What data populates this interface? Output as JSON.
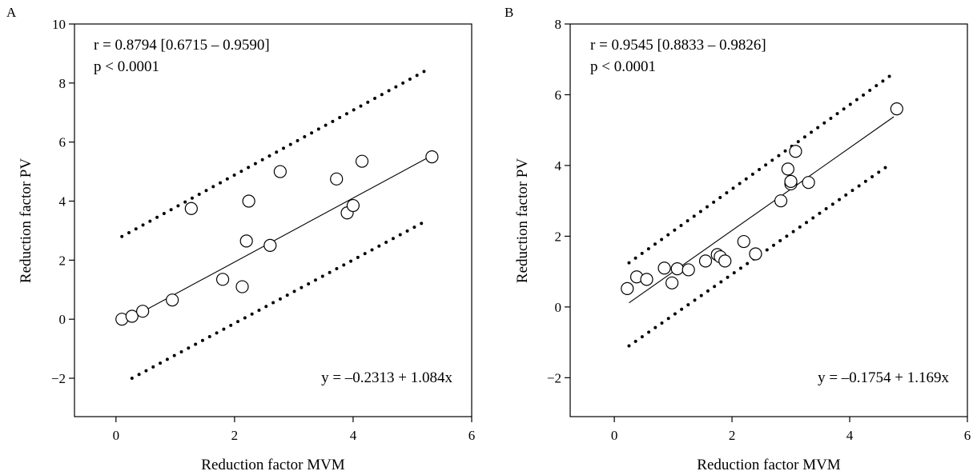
{
  "chart_data": [
    {
      "type": "scatter",
      "panel_label": "A",
      "xlabel": "Reduction factor MVM",
      "ylabel": "Reduction factor PV",
      "xlim": [
        -0.7,
        6
      ],
      "ylim": [
        -3.3,
        10
      ],
      "xticks": [
        0,
        2,
        4,
        6
      ],
      "yticks": [
        -2,
        0,
        2,
        4,
        6,
        8,
        10
      ],
      "xtick_labels": [
        "0",
        "2",
        "4",
        "6"
      ],
      "ytick_labels": [
        "−2",
        "0",
        "2",
        "4",
        "6",
        "8",
        "10"
      ],
      "grid": false,
      "annotations": {
        "r": "r = 0.8794 [0.6715 – 0.9590]",
        "p": "p < 0.0001",
        "equation": "y = –0.2313 + 1.084x"
      },
      "points": [
        {
          "x": 0.1,
          "y": 0.0
        },
        {
          "x": 0.27,
          "y": 0.1
        },
        {
          "x": 0.45,
          "y": 0.27
        },
        {
          "x": 0.95,
          "y": 0.65
        },
        {
          "x": 1.27,
          "y": 3.75
        },
        {
          "x": 1.8,
          "y": 1.35
        },
        {
          "x": 2.13,
          "y": 1.1
        },
        {
          "x": 2.2,
          "y": 2.65
        },
        {
          "x": 2.24,
          "y": 4.0
        },
        {
          "x": 2.6,
          "y": 2.5
        },
        {
          "x": 2.77,
          "y": 5.0
        },
        {
          "x": 3.72,
          "y": 4.75
        },
        {
          "x": 3.9,
          "y": 3.6
        },
        {
          "x": 4.0,
          "y": 3.85
        },
        {
          "x": 4.15,
          "y": 5.35
        },
        {
          "x": 5.33,
          "y": 5.5
        }
      ],
      "fit_line": {
        "x": [
          0.1,
          5.3
        ],
        "intercept": -0.2313,
        "slope": 1.084
      },
      "upper_band": {
        "x": [
          0.1,
          5.25
        ],
        "y": [
          2.8,
          8.45
        ]
      },
      "lower_band": {
        "x": [
          0.27,
          5.25
        ],
        "y": [
          -2.0,
          3.35
        ]
      }
    },
    {
      "type": "scatter",
      "panel_label": "B",
      "xlabel": "Reduction factor MVM",
      "ylabel": "Reduction factor PV",
      "xlim": [
        -0.75,
        6
      ],
      "ylim": [
        -3.1,
        8
      ],
      "xticks": [
        0,
        2,
        4,
        6
      ],
      "yticks": [
        -2,
        0,
        2,
        4,
        6,
        8
      ],
      "xtick_labels": [
        "0",
        "2",
        "4",
        "6"
      ],
      "ytick_labels": [
        "−2",
        "0",
        "2",
        "4",
        "6",
        "8"
      ],
      "grid": false,
      "annotations": {
        "r": "r = 0.9545 [0.8833 – 0.9826]",
        "p": "p < 0.0001",
        "equation": "y = –0.1754 + 1.169x"
      },
      "points": [
        {
          "x": 0.22,
          "y": 0.52
        },
        {
          "x": 0.38,
          "y": 0.85
        },
        {
          "x": 0.55,
          "y": 0.78
        },
        {
          "x": 0.85,
          "y": 1.1
        },
        {
          "x": 0.98,
          "y": 0.68
        },
        {
          "x": 1.07,
          "y": 1.08
        },
        {
          "x": 1.26,
          "y": 1.05
        },
        {
          "x": 1.55,
          "y": 1.3
        },
        {
          "x": 1.75,
          "y": 1.48
        },
        {
          "x": 1.8,
          "y": 1.42
        },
        {
          "x": 1.88,
          "y": 1.3
        },
        {
          "x": 2.2,
          "y": 1.85
        },
        {
          "x": 2.4,
          "y": 1.5
        },
        {
          "x": 2.83,
          "y": 3.0
        },
        {
          "x": 2.95,
          "y": 3.9
        },
        {
          "x": 3.0,
          "y": 3.48
        },
        {
          "x": 3.0,
          "y": 3.55
        },
        {
          "x": 3.08,
          "y": 4.4
        },
        {
          "x": 3.3,
          "y": 3.52
        },
        {
          "x": 4.8,
          "y": 5.6
        }
      ],
      "fit_line": {
        "x": [
          0.25,
          4.75
        ],
        "intercept": -0.1754,
        "slope": 1.169
      },
      "upper_band": {
        "x": [
          0.25,
          4.7
        ],
        "y": [
          1.25,
          6.55
        ]
      },
      "lower_band": {
        "x": [
          0.25,
          4.7
        ],
        "y": [
          -1.1,
          4.05
        ]
      }
    }
  ]
}
